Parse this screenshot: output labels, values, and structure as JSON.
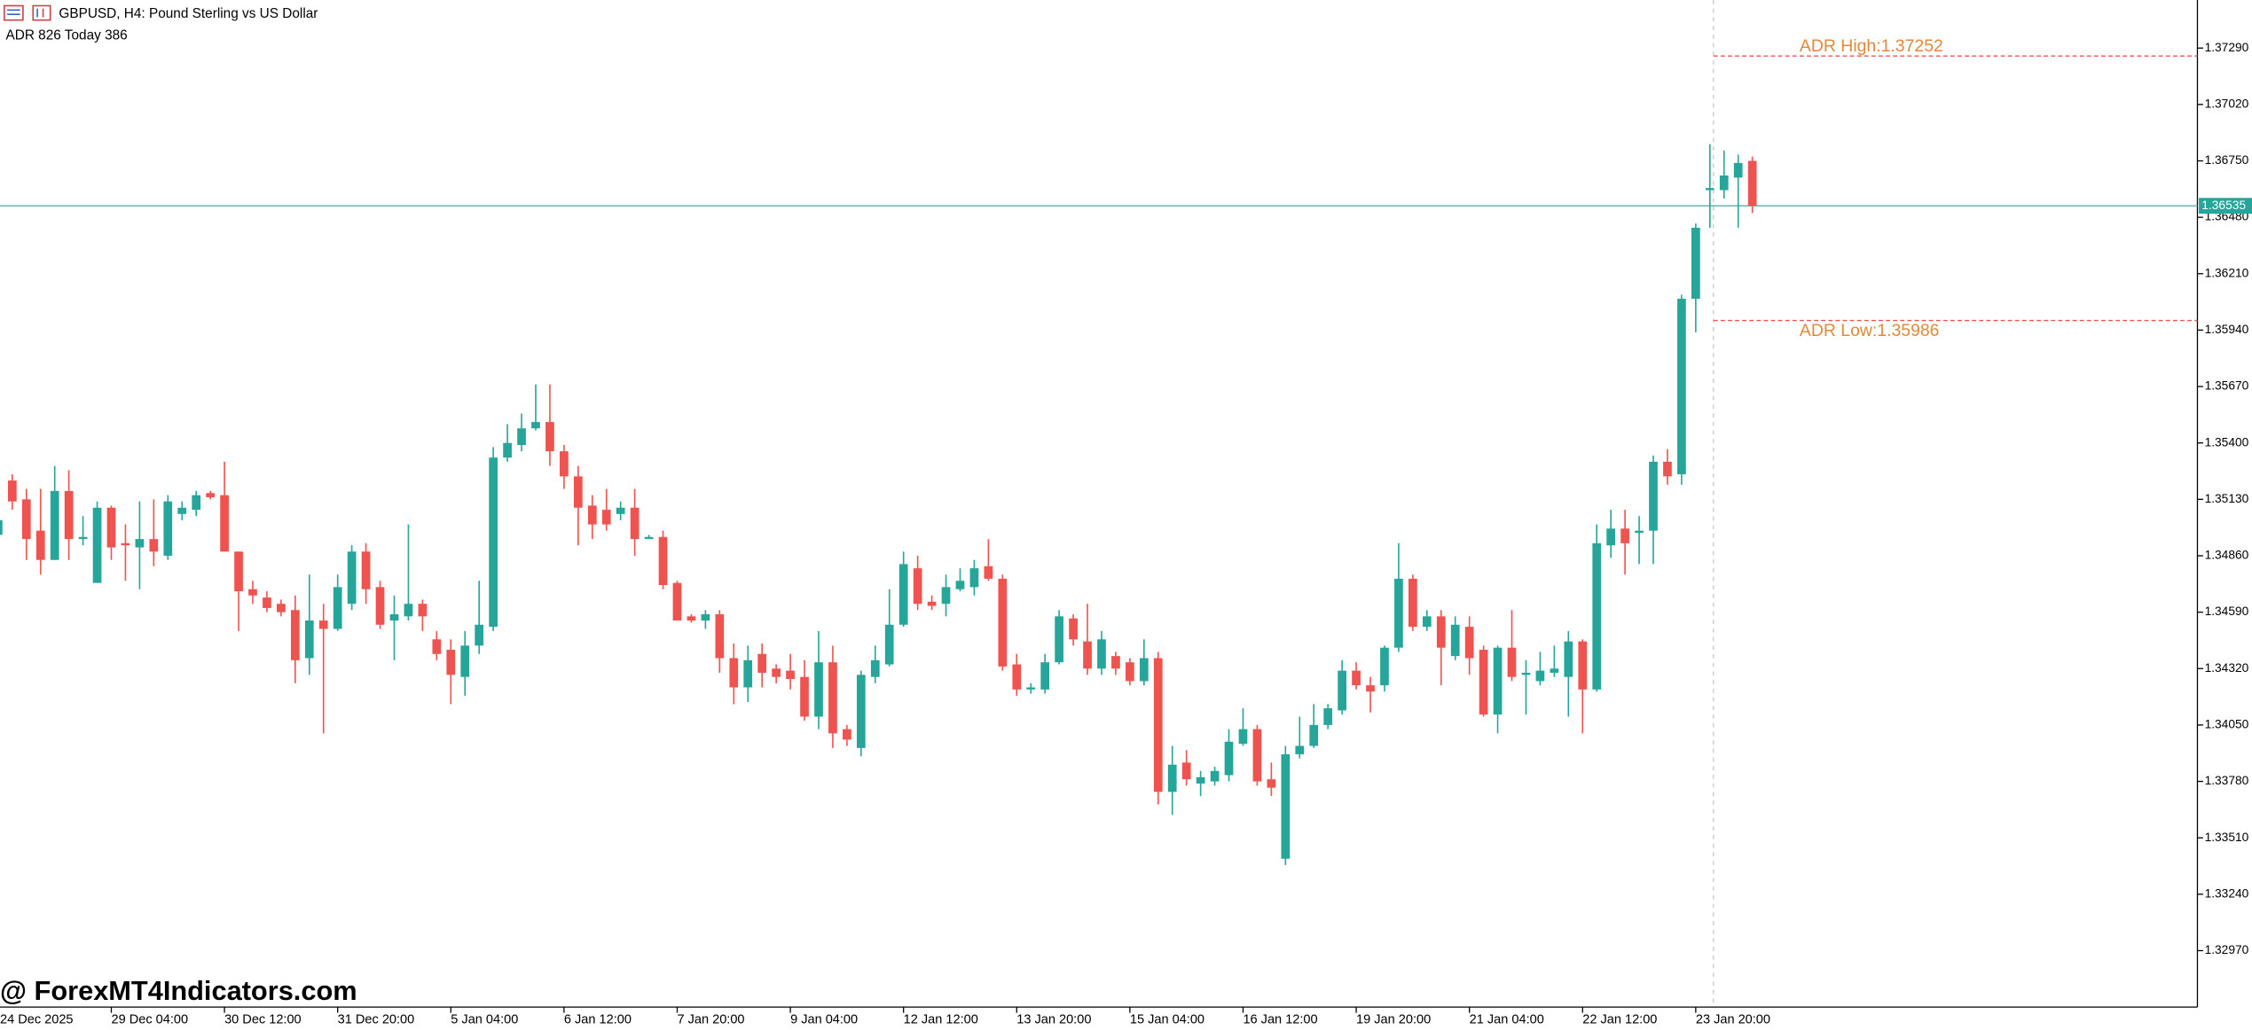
{
  "chart_data": {
    "type": "candlestick",
    "title": "GBPUSD, H4:  Pound Sterling vs US Dollar",
    "subtitle": "ADR 826  Today 386",
    "watermark": "@ ForexMT4Indicators.com",
    "up_color": "#26a69a",
    "down_color": "#ef5350",
    "ylim": [
      1.327,
      1.3752
    ],
    "yticks": [
      {
        "value": 1.3729,
        "label": "1.37290"
      },
      {
        "value": 1.3702,
        "label": "1.37020"
      },
      {
        "value": 1.3675,
        "label": "1.36750"
      },
      {
        "value": 1.3648,
        "label": "1.36480"
      },
      {
        "value": 1.3621,
        "label": "1.36210"
      },
      {
        "value": 1.3594,
        "label": "1.35940"
      },
      {
        "value": 1.3567,
        "label": "1.35670"
      },
      {
        "value": 1.354,
        "label": "1.35400"
      },
      {
        "value": 1.3513,
        "label": "1.35130"
      },
      {
        "value": 1.3486,
        "label": "1.34860"
      },
      {
        "value": 1.3459,
        "label": "1.34590"
      },
      {
        "value": 1.3432,
        "label": "1.34320"
      },
      {
        "value": 1.3405,
        "label": "1.34050"
      },
      {
        "value": 1.3378,
        "label": "1.33780"
      },
      {
        "value": 1.3351,
        "label": "1.33510"
      },
      {
        "value": 1.3324,
        "label": "1.33240"
      },
      {
        "value": 1.3297,
        "label": "1.32970"
      }
    ],
    "current_price": 1.36535,
    "adr_high": {
      "value": 1.37252,
      "label": "ADR High:1.37252"
    },
    "adr_low": {
      "value": 1.35986,
      "label": "ADR Low:1.35986"
    },
    "categories": [
      "24 Dec 2025",
      null,
      null,
      null,
      null,
      null,
      null,
      null,
      "29 Dec 04:00",
      null,
      null,
      null,
      null,
      null,
      null,
      null,
      "30 Dec 12:00",
      null,
      null,
      null,
      null,
      null,
      null,
      null,
      "31 Dec 20:00",
      null,
      null,
      null,
      null,
      null,
      null,
      null,
      "5 Jan 04:00",
      null,
      null,
      null,
      null,
      null,
      null,
      null,
      "6 Jan 12:00",
      null,
      null,
      null,
      null,
      null,
      null,
      null,
      "7 Jan 20:00",
      null,
      null,
      null,
      null,
      null,
      null,
      null,
      "9 Jan 04:00",
      null,
      null,
      null,
      null,
      null,
      null,
      null,
      "12 Jan 12:00",
      null,
      null,
      null,
      null,
      null,
      null,
      null,
      "13 Jan 20:00",
      null,
      null,
      null,
      null,
      null,
      null,
      null,
      "15 Jan 04:00",
      null,
      null,
      null,
      null,
      null,
      null,
      null,
      "16 Jan 12:00",
      null,
      null,
      null,
      null,
      null,
      null,
      null,
      "19 Jan 20:00",
      null,
      null,
      null,
      null,
      null,
      null,
      null,
      "21 Jan 04:00",
      null,
      null,
      null,
      null,
      null,
      null,
      null,
      "22 Jan 12:00",
      null,
      null,
      null,
      null,
      null,
      null,
      null,
      "23 Jan 20:00",
      null,
      null,
      null,
      null
    ],
    "open": [
      1.3496,
      1.3522,
      1.3513,
      1.3498,
      1.3484,
      1.3517,
      1.3494,
      1.3473,
      1.3509,
      1.3492,
      1.349,
      1.3494,
      1.3486,
      1.3506,
      1.3508,
      1.3516,
      1.3515,
      1.3488,
      1.347,
      1.3466,
      1.3463,
      1.346,
      1.3437,
      1.3455,
      1.3451,
      1.3463,
      1.3488,
      1.3471,
      1.3455,
      1.3457,
      1.3463,
      1.3446,
      1.3441,
      1.3428,
      1.3443,
      1.3452,
      1.3533,
      1.3539,
      1.3547,
      1.355,
      1.3536,
      1.3524,
      1.351,
      1.3508,
      1.3506,
      1.3509,
      1.3494,
      1.3495,
      1.3473,
      1.3457,
      1.3455,
      1.3458,
      1.3437,
      1.3423,
      1.3439,
      1.3432,
      1.3431,
      1.3428,
      1.3409,
      1.3435,
      1.3403,
      1.3394,
      1.3428,
      1.3434,
      1.3453,
      1.348,
      1.3464,
      1.3463,
      1.347,
      1.3471,
      1.3481,
      1.3475,
      1.3434,
      1.3422,
      1.3422,
      1.3435,
      1.3456,
      1.3445,
      1.3432,
      1.3438,
      1.3435,
      1.3426,
      1.3437,
      1.3373,
      1.3387,
      1.3377,
      1.3378,
      1.3381,
      1.3396,
      1.3403,
      1.3379,
      1.3341,
      1.3391,
      1.3395,
      1.3405,
      1.3412,
      1.3431,
      1.3424,
      1.3424,
      1.3442,
      1.3475,
      1.3452,
      1.3457,
      1.3438,
      1.3452,
      1.3441,
      1.341,
      1.3442,
      1.3429,
      1.3426,
      1.343,
      1.3428,
      1.3445,
      1.3422,
      1.3491,
      1.3499,
      1.3497,
      1.3498,
      1.3531,
      1.3525,
      1.3609,
      1.3661,
      1.3661,
      1.3667,
      1.3675
    ],
    "high": [
      1.3506,
      1.3525,
      1.3518,
      1.3518,
      1.3529,
      1.3527,
      1.3505,
      1.3512,
      1.351,
      1.3501,
      1.3512,
      1.3513,
      1.3515,
      1.3512,
      1.3517,
      1.3517,
      1.3531,
      1.3488,
      1.3474,
      1.3469,
      1.3465,
      1.3467,
      1.3477,
      1.3463,
      1.3477,
      1.3491,
      1.3492,
      1.3474,
      1.3467,
      1.3501,
      1.3465,
      1.345,
      1.3446,
      1.345,
      1.3474,
      1.3538,
      1.3549,
      1.3554,
      1.3568,
      1.3568,
      1.3539,
      1.3529,
      1.3515,
      1.3518,
      1.3512,
      1.3518,
      1.3496,
      1.3498,
      1.3474,
      1.3458,
      1.346,
      1.346,
      1.3444,
      1.3443,
      1.3444,
      1.3434,
      1.3439,
      1.3436,
      1.345,
      1.3443,
      1.3405,
      1.3431,
      1.3443,
      1.347,
      1.3488,
      1.3486,
      1.3467,
      1.3477,
      1.348,
      1.3484,
      1.3494,
      1.3477,
      1.3439,
      1.3425,
      1.3439,
      1.346,
      1.3458,
      1.3463,
      1.345,
      1.344,
      1.3437,
      1.3446,
      1.344,
      1.3395,
      1.3393,
      1.3383,
      1.3385,
      1.3403,
      1.3413,
      1.3405,
      1.3387,
      1.3395,
      1.3409,
      1.3415,
      1.3415,
      1.3436,
      1.3435,
      1.3428,
      1.3443,
      1.3492,
      1.3477,
      1.346,
      1.346,
      1.3457,
      1.3457,
      1.3443,
      1.3443,
      1.346,
      1.3436,
      1.344,
      1.3443,
      1.345,
      1.3446,
      1.3501,
      1.3508,
      1.3508,
      1.3505,
      1.3534,
      1.3537,
      1.3611,
      1.3645,
      1.3683,
      1.368,
      1.3678,
      1.3677
    ],
    "low": [
      1.3494,
      1.3508,
      1.3484,
      1.3477,
      1.3484,
      1.3484,
      1.3491,
      1.3473,
      1.3484,
      1.3474,
      1.347,
      1.3481,
      1.3484,
      1.3503,
      1.3505,
      1.3513,
      1.3488,
      1.345,
      1.3463,
      1.3459,
      1.3457,
      1.3425,
      1.3429,
      1.3401,
      1.345,
      1.346,
      1.3463,
      1.3451,
      1.3436,
      1.3455,
      1.345,
      1.3436,
      1.3415,
      1.3419,
      1.3439,
      1.345,
      1.3531,
      1.3536,
      1.3546,
      1.3529,
      1.3518,
      1.3491,
      1.3494,
      1.3498,
      1.3503,
      1.3486,
      1.3494,
      1.347,
      1.3455,
      1.3454,
      1.3451,
      1.343,
      1.3415,
      1.3416,
      1.3423,
      1.3425,
      1.3422,
      1.3407,
      1.3403,
      1.3394,
      1.3395,
      1.339,
      1.3425,
      1.3433,
      1.3452,
      1.346,
      1.346,
      1.3457,
      1.3469,
      1.3467,
      1.3474,
      1.3431,
      1.3419,
      1.342,
      1.342,
      1.3434,
      1.3443,
      1.3429,
      1.3429,
      1.3429,
      1.3424,
      1.3424,
      1.3367,
      1.3362,
      1.3376,
      1.3371,
      1.3376,
      1.3378,
      1.3395,
      1.3376,
      1.3371,
      1.3338,
      1.3389,
      1.3394,
      1.3403,
      1.341,
      1.3422,
      1.3411,
      1.3421,
      1.344,
      1.345,
      1.345,
      1.3424,
      1.3436,
      1.3429,
      1.3409,
      1.3401,
      1.3426,
      1.341,
      1.3424,
      1.3428,
      1.3409,
      1.3401,
      1.3421,
      1.3485,
      1.3477,
      1.3482,
      1.3482,
      1.352,
      1.352,
      1.3593,
      1.3643,
      1.3657,
      1.3643,
      1.365
    ],
    "close": [
      1.3503,
      1.3512,
      1.3494,
      1.3484,
      1.3517,
      1.3494,
      1.3495,
      1.3509,
      1.349,
      1.3491,
      1.3494,
      1.3488,
      1.3512,
      1.3509,
      1.3515,
      1.3514,
      1.3488,
      1.3469,
      1.3467,
      1.3461,
      1.3459,
      1.3436,
      1.3455,
      1.3451,
      1.3471,
      1.3488,
      1.347,
      1.3453,
      1.3458,
      1.3463,
      1.3457,
      1.3439,
      1.3429,
      1.3443,
      1.3453,
      1.3533,
      1.354,
      1.3547,
      1.355,
      1.3536,
      1.3524,
      1.3509,
      1.3501,
      1.3501,
      1.3509,
      1.3494,
      1.3495,
      1.3472,
      1.3455,
      1.3455,
      1.3458,
      1.3437,
      1.3423,
      1.3436,
      1.343,
      1.3428,
      1.3427,
      1.3409,
      1.3435,
      1.3401,
      1.3398,
      1.3429,
      1.3436,
      1.3453,
      1.3482,
      1.3463,
      1.3462,
      1.3471,
      1.3474,
      1.348,
      1.3475,
      1.3433,
      1.3422,
      1.3423,
      1.3435,
      1.3457,
      1.3446,
      1.3432,
      1.3446,
      1.3432,
      1.3426,
      1.3437,
      1.3373,
      1.3386,
      1.3379,
      1.338,
      1.3383,
      1.3397,
      1.3403,
      1.3378,
      1.3375,
      1.3391,
      1.3395,
      1.3405,
      1.3413,
      1.3431,
      1.3424,
      1.3421,
      1.3442,
      1.3475,
      1.3452,
      1.3457,
      1.3442,
      1.3453,
      1.3437,
      1.341,
      1.3442,
      1.3428,
      1.343,
      1.3431,
      1.3432,
      1.3445,
      1.3422,
      1.3492,
      1.3499,
      1.3492,
      1.3498,
      1.3531,
      1.3524,
      1.3609,
      1.3643,
      1.3662,
      1.3668,
      1.3674,
      1.36535
    ]
  }
}
